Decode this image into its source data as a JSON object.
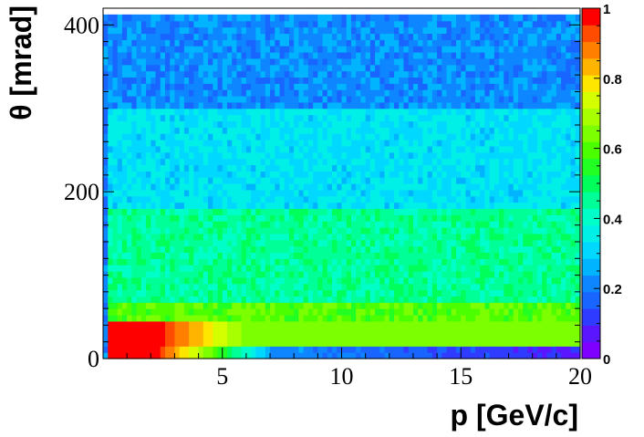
{
  "chart_data": {
    "type": "heatmap",
    "title": "",
    "xlabel": "p [GeV/c]",
    "ylabel": "θ [mrad]",
    "xlim": [
      0,
      20
    ],
    "ylim": [
      0,
      420
    ],
    "zlim": [
      0,
      1
    ],
    "x_ticks": [
      5,
      10,
      15,
      20
    ],
    "x_tick_labels": [
      "5",
      "10",
      "15",
      "20"
    ],
    "y_ticks": [
      0,
      200,
      400
    ],
    "y_tick_labels": [
      "0",
      "200",
      "400"
    ],
    "colorbar_ticks": [
      0,
      0.2,
      0.4,
      0.6,
      0.8,
      1
    ],
    "colorbar_tick_labels": [
      "0",
      "0.2",
      "0.4",
      "0.6",
      "0.8",
      "1"
    ],
    "colorbar_colors": [
      "#7f00ff",
      "#5a16ff",
      "#2f3cff",
      "#1866ff",
      "#0e86ff",
      "#00b4ff",
      "#00d8ff",
      "#00f0e8",
      "#00ffc8",
      "#00ff96",
      "#00ff5a",
      "#22ff22",
      "#4cff00",
      "#7cff00",
      "#a8ff00",
      "#d4ff00",
      "#ffe600",
      "#ffb400",
      "#ff8000",
      "#ff4c00",
      "#ff0000"
    ],
    "bands": [
      {
        "theta": [
          300,
          415
        ],
        "efficiency": 0.22
      },
      {
        "theta": [
          183,
          300
        ],
        "efficiency": 0.33
      },
      {
        "theta": [
          68,
          183
        ],
        "efficiency": 0.45
      },
      {
        "theta": [
          45,
          68
        ],
        "efficiency": 0.6
      },
      {
        "theta": [
          17,
          45
        ],
        "efficiency": 0.62
      },
      {
        "theta": [
          0,
          17
        ],
        "efficiency": 0.22
      }
    ],
    "low_p_region": {
      "p_max": 2.0,
      "theta": [
        0,
        45
      ],
      "efficiency": 1.0
    },
    "grid": false,
    "colorbar": "right"
  }
}
